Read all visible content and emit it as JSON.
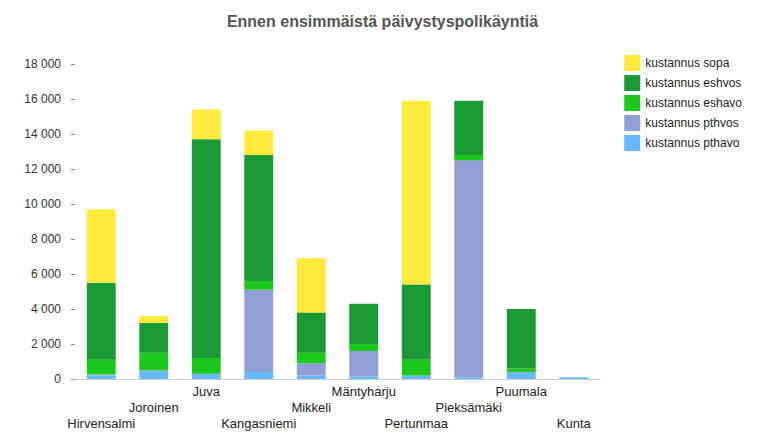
{
  "chart_data": {
    "type": "bar",
    "title": "Ennen ensimmäistä päivystyspolikäyntiä",
    "stacked": true,
    "grid": false,
    "legend": "right",
    "categories": [
      "Hirvensalmi",
      "Joroinen",
      "Juva",
      "Kangasniemi",
      "Mikkeli",
      "Mäntyharju",
      "Pertunmaa",
      "Pieksämäki",
      "Puumala",
      "Kunta"
    ],
    "series": [
      {
        "name": "kustannus sopa",
        "color": "#ffe93b",
        "values": [
          4200,
          400,
          1700,
          1400,
          3100,
          0,
          10500,
          0,
          0,
          0
        ]
      },
      {
        "name": "kustannus eshvos",
        "color": "#1a9a35",
        "values": [
          4400,
          1700,
          12500,
          7200,
          2300,
          2300,
          4300,
          3100,
          3400,
          0
        ]
      },
      {
        "name": "kustannus eshavo",
        "color": "#1cc81c",
        "values": [
          850,
          1000,
          900,
          500,
          600,
          400,
          900,
          300,
          200,
          0
        ]
      },
      {
        "name": "kustannus pthvos",
        "color": "#8f9fd6",
        "values": [
          50,
          50,
          0,
          4700,
          700,
          1450,
          0,
          12400,
          50,
          0
        ]
      },
      {
        "name": "kustannus pthavo",
        "color": "#66b8ff",
        "values": [
          200,
          450,
          300,
          400,
          200,
          150,
          200,
          100,
          350,
          100
        ]
      }
    ],
    "ylim": [
      0,
      18000
    ],
    "yticks": [
      0,
      {
        "value": 2000,
        "label": "2 000"
      },
      {
        "value": 4000,
        "label": "4 000"
      },
      {
        "value": 6000,
        "label": "6 000"
      },
      {
        "value": 8000,
        "label": "8 000"
      },
      {
        "value": 10000,
        "label": "10 000"
      },
      {
        "value": 12000,
        "label": "12 000"
      },
      {
        "value": 14000,
        "label": "14 000"
      },
      {
        "value": 16000,
        "label": "16 000"
      },
      {
        "value": 18000,
        "label": "18 000"
      }
    ]
  }
}
